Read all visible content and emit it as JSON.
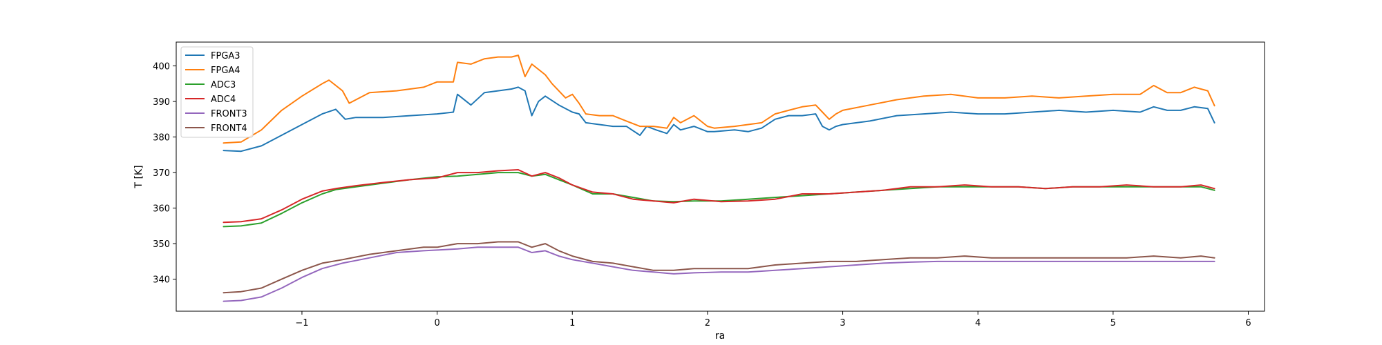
{
  "chart_data": {
    "type": "line",
    "title": "",
    "xlabel": "ra",
    "ylabel": "T [K]",
    "xlim": [
      -1.93,
      6.12
    ],
    "ylim": [
      331.0,
      406.7
    ],
    "xticks": [
      -1,
      0,
      1,
      2,
      3,
      4,
      5,
      6
    ],
    "xtick_labels": [
      "−1",
      "0",
      "1",
      "2",
      "3",
      "4",
      "5",
      "6"
    ],
    "yticks": [
      340,
      350,
      360,
      370,
      380,
      390,
      400
    ],
    "ytick_labels": [
      "340",
      "350",
      "360",
      "370",
      "380",
      "390",
      "400"
    ],
    "grid": false,
    "legend_position": "top-left",
    "series": [
      {
        "name": "FPGA3",
        "color": "#1f77b4",
        "x": [
          -1.58,
          -1.45,
          -1.3,
          -1.15,
          -1.0,
          -0.85,
          -0.75,
          -0.68,
          -0.6,
          -0.4,
          -0.2,
          0.0,
          0.12,
          0.15,
          0.25,
          0.35,
          0.45,
          0.55,
          0.6,
          0.65,
          0.7,
          0.75,
          0.8,
          0.9,
          1.0,
          1.05,
          1.1,
          1.2,
          1.3,
          1.4,
          1.5,
          1.55,
          1.62,
          1.7,
          1.75,
          1.8,
          1.9,
          2.0,
          2.05,
          2.2,
          2.3,
          2.4,
          2.5,
          2.6,
          2.7,
          2.8,
          2.85,
          2.9,
          2.95,
          3.0,
          3.2,
          3.4,
          3.6,
          3.8,
          4.0,
          4.2,
          4.4,
          4.6,
          4.8,
          5.0,
          5.2,
          5.3,
          5.4,
          5.5,
          5.6,
          5.7,
          5.75
        ],
        "y": [
          376.2,
          376.0,
          377.5,
          380.5,
          383.5,
          386.5,
          387.8,
          385.0,
          385.5,
          385.5,
          386.0,
          386.5,
          387.0,
          392.0,
          389.0,
          392.5,
          393.0,
          393.5,
          394.0,
          393.0,
          386.0,
          390.0,
          391.5,
          389.0,
          387.0,
          386.5,
          384.0,
          383.5,
          383.0,
          383.0,
          380.5,
          383.0,
          382.0,
          381.0,
          383.5,
          382.0,
          383.0,
          381.5,
          381.5,
          382.0,
          381.5,
          382.5,
          385.0,
          386.0,
          386.0,
          386.5,
          383.0,
          382.0,
          383.0,
          383.5,
          384.5,
          386.0,
          386.5,
          387.0,
          386.5,
          386.5,
          387.0,
          387.5,
          387.0,
          387.5,
          387.0,
          388.5,
          387.5,
          387.5,
          388.5,
          388.0,
          384.0
        ]
      },
      {
        "name": "FPGA4",
        "color": "#ff7f0e",
        "x": [
          -1.58,
          -1.45,
          -1.3,
          -1.15,
          -1.0,
          -0.85,
          -0.8,
          -0.7,
          -0.65,
          -0.5,
          -0.3,
          -0.1,
          0.0,
          0.12,
          0.15,
          0.25,
          0.35,
          0.45,
          0.55,
          0.6,
          0.65,
          0.7,
          0.8,
          0.85,
          0.95,
          1.0,
          1.05,
          1.1,
          1.2,
          1.3,
          1.4,
          1.5,
          1.6,
          1.7,
          1.75,
          1.8,
          1.9,
          2.0,
          2.05,
          2.2,
          2.3,
          2.4,
          2.5,
          2.6,
          2.7,
          2.8,
          2.85,
          2.9,
          2.95,
          3.0,
          3.2,
          3.4,
          3.6,
          3.8,
          4.0,
          4.2,
          4.4,
          4.6,
          4.8,
          5.0,
          5.2,
          5.3,
          5.4,
          5.5,
          5.6,
          5.7,
          5.75
        ],
        "y": [
          378.3,
          378.6,
          382.0,
          387.5,
          391.5,
          395.0,
          396.0,
          393.0,
          389.5,
          392.5,
          393.0,
          394.0,
          395.5,
          395.5,
          401.0,
          400.5,
          402.0,
          402.5,
          402.5,
          403.0,
          397.0,
          400.5,
          397.5,
          395.0,
          391.0,
          392.0,
          389.5,
          386.5,
          386.0,
          386.0,
          384.5,
          383.0,
          383.0,
          382.5,
          385.5,
          384.0,
          386.0,
          383.0,
          382.5,
          383.0,
          383.5,
          384.0,
          386.5,
          387.5,
          388.5,
          389.0,
          387.0,
          385.0,
          386.5,
          387.5,
          389.0,
          390.5,
          391.5,
          392.0,
          391.0,
          391.0,
          391.5,
          391.0,
          391.5,
          392.0,
          392.0,
          394.5,
          392.5,
          392.5,
          394.0,
          393.0,
          388.8
        ]
      },
      {
        "name": "ADC3",
        "color": "#2ca02c",
        "x": [
          -1.58,
          -1.45,
          -1.3,
          -1.15,
          -1.0,
          -0.85,
          -0.75,
          -0.6,
          -0.4,
          -0.2,
          0.0,
          0.15,
          0.3,
          0.45,
          0.6,
          0.7,
          0.8,
          0.9,
          1.0,
          1.15,
          1.3,
          1.45,
          1.6,
          1.75,
          1.9,
          2.1,
          2.3,
          2.5,
          2.7,
          2.9,
          3.1,
          3.3,
          3.5,
          3.7,
          3.9,
          4.1,
          4.3,
          4.5,
          4.7,
          4.9,
          5.1,
          5.3,
          5.5,
          5.65,
          5.75
        ],
        "y": [
          354.8,
          355.0,
          355.8,
          358.5,
          361.5,
          364.0,
          365.2,
          366.0,
          367.0,
          368.0,
          368.8,
          369.0,
          369.5,
          370.0,
          370.0,
          369.0,
          369.5,
          368.0,
          366.5,
          364.0,
          364.0,
          363.0,
          362.0,
          361.8,
          362.0,
          362.0,
          362.5,
          363.0,
          363.5,
          364.0,
          364.5,
          365.0,
          365.5,
          366.0,
          366.0,
          366.0,
          366.0,
          365.5,
          366.0,
          366.0,
          366.0,
          366.0,
          366.0,
          366.0,
          365.0
        ]
      },
      {
        "name": "ADC4",
        "color": "#d62728",
        "x": [
          -1.58,
          -1.45,
          -1.3,
          -1.15,
          -1.0,
          -0.85,
          -0.75,
          -0.6,
          -0.4,
          -0.2,
          0.0,
          0.15,
          0.3,
          0.45,
          0.6,
          0.7,
          0.8,
          0.9,
          1.0,
          1.15,
          1.3,
          1.45,
          1.6,
          1.75,
          1.9,
          2.1,
          2.3,
          2.5,
          2.7,
          2.9,
          3.1,
          3.3,
          3.5,
          3.7,
          3.9,
          4.1,
          4.3,
          4.5,
          4.7,
          4.9,
          5.1,
          5.3,
          5.5,
          5.65,
          5.75
        ],
        "y": [
          356.0,
          356.2,
          357.0,
          359.5,
          362.5,
          364.8,
          365.5,
          366.3,
          367.2,
          368.0,
          368.5,
          370.0,
          370.0,
          370.5,
          370.8,
          369.0,
          370.0,
          368.5,
          366.5,
          364.5,
          364.0,
          362.5,
          362.0,
          361.5,
          362.5,
          361.8,
          362.0,
          362.5,
          364.0,
          364.0,
          364.5,
          365.0,
          366.0,
          366.0,
          366.5,
          366.0,
          366.0,
          365.5,
          366.0,
          366.0,
          366.5,
          366.0,
          366.0,
          366.5,
          365.5
        ]
      },
      {
        "name": "FRONT3",
        "color": "#9467bd",
        "x": [
          -1.58,
          -1.45,
          -1.3,
          -1.15,
          -1.0,
          -0.85,
          -0.7,
          -0.5,
          -0.3,
          -0.1,
          0.0,
          0.15,
          0.3,
          0.45,
          0.6,
          0.7,
          0.8,
          0.9,
          1.0,
          1.15,
          1.3,
          1.45,
          1.6,
          1.75,
          1.9,
          2.1,
          2.3,
          2.5,
          2.7,
          2.9,
          3.1,
          3.3,
          3.5,
          3.7,
          3.9,
          4.1,
          4.3,
          4.5,
          4.7,
          4.9,
          5.1,
          5.3,
          5.5,
          5.65,
          5.75
        ],
        "y": [
          333.8,
          334.0,
          335.0,
          337.5,
          340.5,
          343.0,
          344.5,
          346.0,
          347.5,
          348.0,
          348.2,
          348.5,
          349.0,
          349.0,
          349.0,
          347.5,
          348.0,
          346.5,
          345.5,
          344.5,
          343.5,
          342.5,
          342.0,
          341.5,
          341.8,
          342.0,
          342.0,
          342.5,
          343.0,
          343.5,
          344.0,
          344.5,
          344.8,
          345.0,
          345.0,
          345.0,
          345.0,
          345.0,
          345.0,
          345.0,
          345.0,
          345.0,
          345.0,
          345.0,
          345.0
        ]
      },
      {
        "name": "FRONT4",
        "color": "#8c564b",
        "x": [
          -1.58,
          -1.45,
          -1.3,
          -1.15,
          -1.0,
          -0.85,
          -0.7,
          -0.5,
          -0.3,
          -0.1,
          0.0,
          0.15,
          0.3,
          0.45,
          0.6,
          0.7,
          0.8,
          0.9,
          1.0,
          1.15,
          1.3,
          1.45,
          1.6,
          1.75,
          1.9,
          2.1,
          2.3,
          2.5,
          2.7,
          2.9,
          3.1,
          3.3,
          3.5,
          3.7,
          3.9,
          4.1,
          4.3,
          4.5,
          4.7,
          4.9,
          5.1,
          5.3,
          5.5,
          5.65,
          5.75
        ],
        "y": [
          336.2,
          336.5,
          337.5,
          340.0,
          342.5,
          344.5,
          345.5,
          347.0,
          348.0,
          349.0,
          349.0,
          350.0,
          350.0,
          350.5,
          350.5,
          349.0,
          350.0,
          348.0,
          346.5,
          345.0,
          344.5,
          343.5,
          342.5,
          342.5,
          343.0,
          343.0,
          343.0,
          344.0,
          344.5,
          345.0,
          345.0,
          345.5,
          346.0,
          346.0,
          346.5,
          346.0,
          346.0,
          346.0,
          346.0,
          346.0,
          346.0,
          346.5,
          346.0,
          346.5,
          346.0
        ]
      }
    ]
  }
}
